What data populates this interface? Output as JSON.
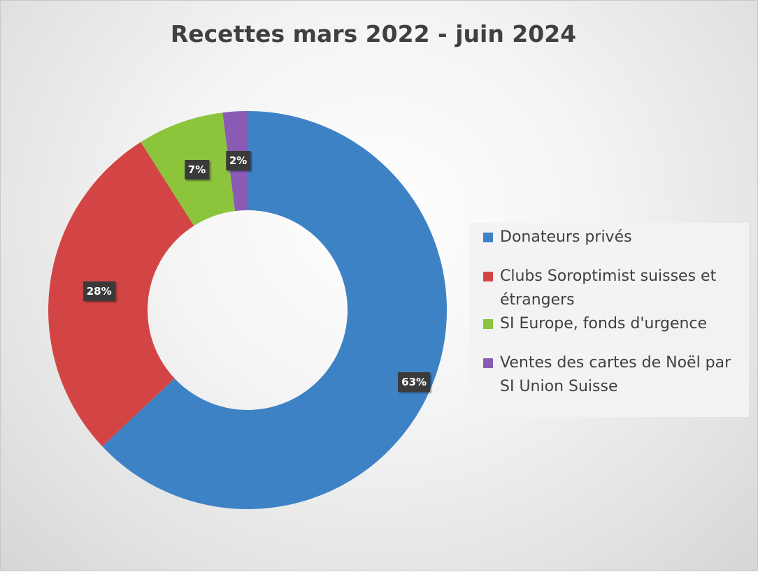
{
  "chart_data": {
    "type": "pie",
    "variant": "donut",
    "title": "Recettes mars 2022 - juin 2024",
    "labels": [
      "Donateurs privés",
      "Clubs Soroptimist suisses et étrangers",
      "SI Europe, fonds d'urgence",
      "Ventes des cartes de Noël par SI Union Suisse"
    ],
    "values": [
      63,
      28,
      7,
      2
    ],
    "data_labels": [
      "63%",
      "28%",
      "7%",
      "2%"
    ],
    "colors": [
      "#3e82c6",
      "#d34545",
      "#8cc43c",
      "#8a5bb5"
    ],
    "legend": "right",
    "start_angle_deg": 0,
    "direction": "clockwise"
  }
}
